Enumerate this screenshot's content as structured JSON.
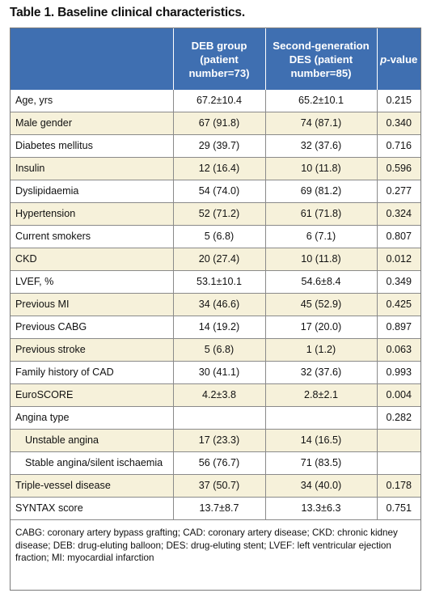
{
  "caption": "Table 1. Baseline clinical characteristics.",
  "header": {
    "col0": "",
    "col1": "DEB group (patient number=73)",
    "col2": "Second-generation DES (patient number=85)",
    "col3_italic": "p",
    "col3_rest": "-value"
  },
  "rows": [
    {
      "label": "Age, yrs",
      "deb": "67.2±10.4",
      "des": "65.2±10.1",
      "p": "0.215",
      "indent": false
    },
    {
      "label": "Male gender",
      "deb": "67 (91.8)",
      "des": "74 (87.1)",
      "p": "0.340",
      "indent": false
    },
    {
      "label": "Diabetes mellitus",
      "deb": "29 (39.7)",
      "des": "32 (37.6)",
      "p": "0.716",
      "indent": false
    },
    {
      "label": "Insulin",
      "deb": "12 (16.4)",
      "des": "10 (11.8)",
      "p": "0.596",
      "indent": false
    },
    {
      "label": "Dyslipidaemia",
      "deb": "54 (74.0)",
      "des": "69 (81.2)",
      "p": "0.277",
      "indent": false
    },
    {
      "label": "Hypertension",
      "deb": "52 (71.2)",
      "des": "61 (71.8)",
      "p": "0.324",
      "indent": false
    },
    {
      "label": "Current smokers",
      "deb": "5 (6.8)",
      "des": "6 (7.1)",
      "p": "0.807",
      "indent": false
    },
    {
      "label": "CKD",
      "deb": "20 (27.4)",
      "des": "10 (11.8)",
      "p": "0.012",
      "indent": false
    },
    {
      "label": "LVEF, %",
      "deb": "53.1±10.1",
      "des": "54.6±8.4",
      "p": "0.349",
      "indent": false
    },
    {
      "label": "Previous MI",
      "deb": "34 (46.6)",
      "des": "45 (52.9)",
      "p": "0.425",
      "indent": false
    },
    {
      "label": "Previous CABG",
      "deb": "14 (19.2)",
      "des": "17 (20.0)",
      "p": "0.897",
      "indent": false
    },
    {
      "label": "Previous stroke",
      "deb": "5 (6.8)",
      "des": "1 (1.2)",
      "p": "0.063",
      "indent": false
    },
    {
      "label": "Family history of CAD",
      "deb": "30 (41.1)",
      "des": "32 (37.6)",
      "p": "0.993",
      "indent": false
    },
    {
      "label": "EuroSCORE",
      "deb": "4.2±3.8",
      "des": "2.8±2.1",
      "p": "0.004",
      "indent": false
    },
    {
      "label": "Angina type",
      "deb": "",
      "des": "",
      "p": "0.282",
      "indent": false
    },
    {
      "label": "Unstable angina",
      "deb": "17 (23.3)",
      "des": "14 (16.5)",
      "p": "",
      "indent": true
    },
    {
      "label": "Stable angina/silent ischaemia",
      "deb": "56 (76.7)",
      "des": "71 (83.5)",
      "p": "",
      "indent": true
    },
    {
      "label": "Triple-vessel disease",
      "deb": "37 (50.7)",
      "des": "34 (40.0)",
      "p": "0.178",
      "indent": false
    },
    {
      "label": "SYNTAX score",
      "deb": "13.7±8.7",
      "des": "13.3±6.3",
      "p": "0.751",
      "indent": false
    }
  ],
  "footnote": "CABG: coronary artery bypass grafting; CAD: coronary artery disease; CKD: chronic kidney disease; DEB: drug-eluting balloon; DES: drug-eluting stent; LVEF: left ventricular ejection fraction; MI: myocardial infarction",
  "colors": {
    "header_bg": "#3f6fb1",
    "alt_row_bg": "#f6f1da",
    "border": "#8a8a8a"
  }
}
